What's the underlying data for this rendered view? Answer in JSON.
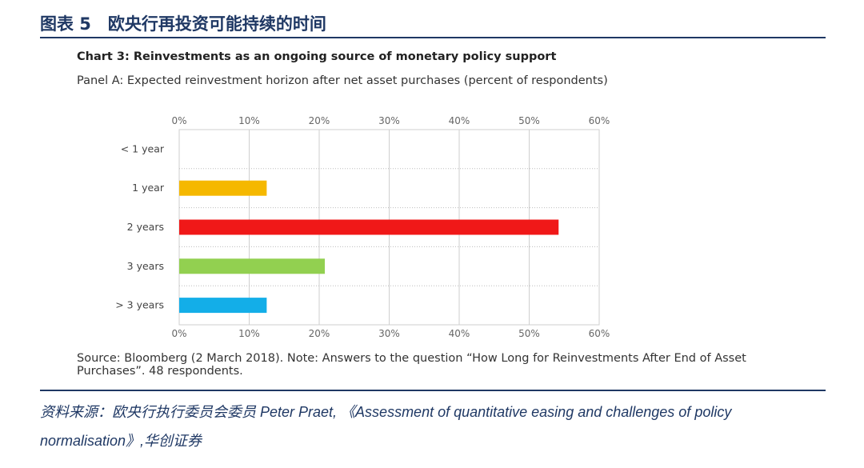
{
  "figure_title": "图表 5　欧央行再投资可能持续的时间",
  "chart_title": "Chart 3: Reinvestments as an ongoing source of monetary policy support",
  "panel_subtitle": "Panel A: Expected reinvestment horizon after net asset purchases (percent of respondents)",
  "note": "Source: Bloomberg (2 March 2018). Note: Answers to the question “How Long for Reinvestments After End of Asset Purchases”. 48 respondents.",
  "footer_source": "资料来源：欧央行执行委员会委员 Peter Praet, 《Assessment of quantitative easing and challenges of policy normalisation》,华创证券",
  "chart_data": {
    "type": "bar",
    "orientation": "horizontal",
    "categories": [
      "< 1 year",
      "1 year",
      "2 years",
      "3 years",
      "> 3 years"
    ],
    "values": [
      0,
      12.5,
      54.2,
      20.8,
      12.5
    ],
    "colors": [
      "#f5b800",
      "#f5b800",
      "#f01818",
      "#92d050",
      "#13aee8"
    ],
    "xlim": [
      0,
      60
    ],
    "xticks": [
      "0%",
      "10%",
      "20%",
      "30%",
      "40%",
      "50%",
      "60%"
    ],
    "grid": true,
    "xlabel": "",
    "ylabel": ""
  }
}
